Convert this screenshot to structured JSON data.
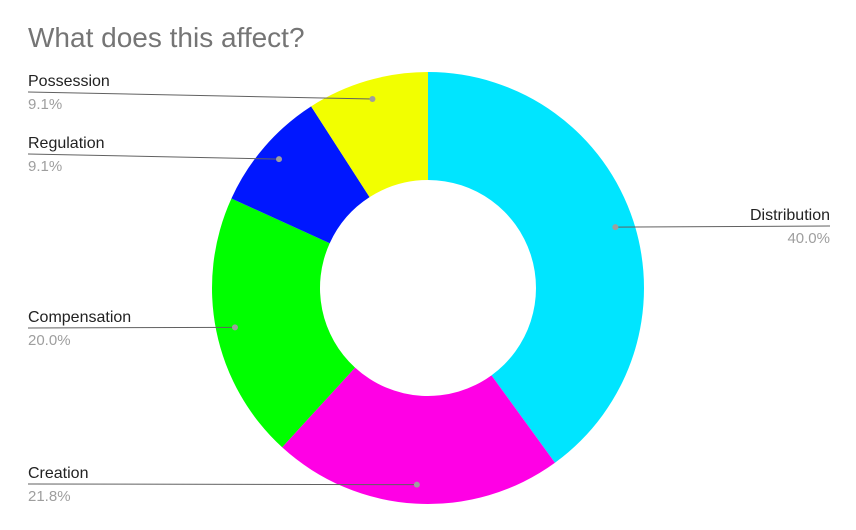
{
  "chart_data": {
    "type": "pie",
    "title": "What does this affect?",
    "donut": true,
    "slices": [
      {
        "label": "Distribution",
        "value": 40.0,
        "display": "40.0%",
        "color": "#00e5ff"
      },
      {
        "label": "Creation",
        "value": 21.8,
        "display": "21.8%",
        "color": "#ff00e5"
      },
      {
        "label": "Compensation",
        "value": 20.0,
        "display": "20.0%",
        "color": "#00ff00"
      },
      {
        "label": "Regulation",
        "value": 9.1,
        "display": "9.1%",
        "color": "#0017ff"
      },
      {
        "label": "Possession",
        "value": 9.1,
        "display": "9.1%",
        "color": "#f2ff00"
      }
    ]
  }
}
